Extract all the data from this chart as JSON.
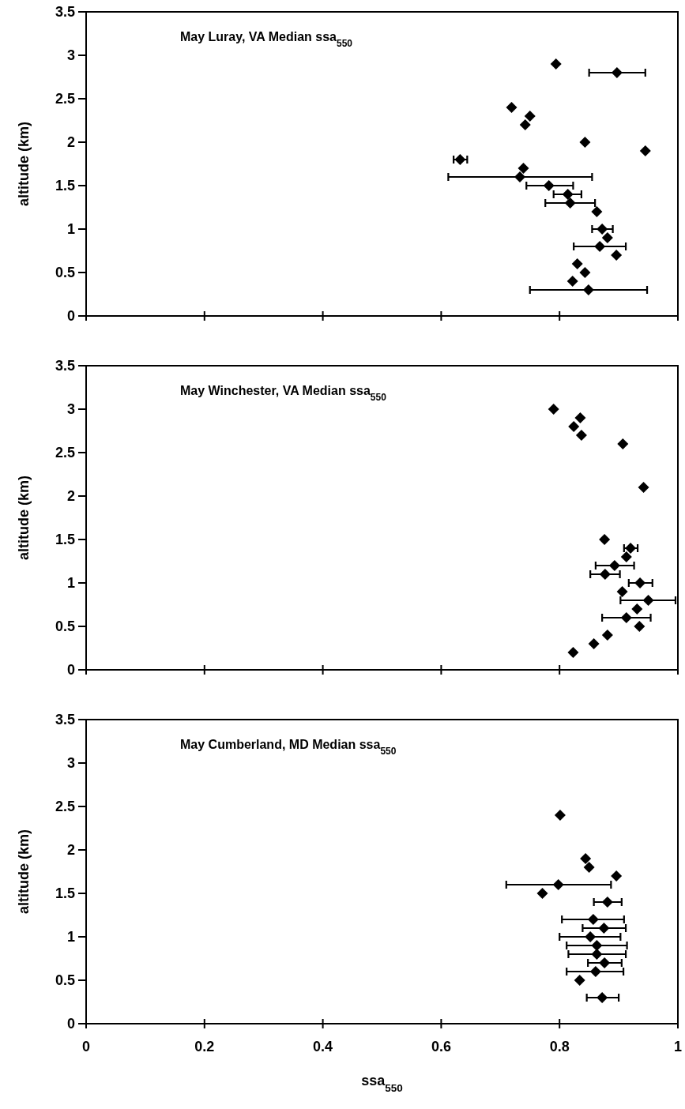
{
  "chart_data": [
    {
      "type": "scatter",
      "title": "May Luray, VA Median ssa$_{550}$",
      "ylabel": "altitude (km)",
      "xlim": [
        0,
        1
      ],
      "xticks": [
        0,
        0.2,
        0.4,
        0.6,
        0.8,
        1
      ],
      "ylim": [
        0,
        3.5
      ],
      "yticks": [
        0,
        0.5,
        1,
        1.5,
        2,
        2.5,
        3,
        3.5
      ],
      "tick_labels": "y",
      "marker": "diamond",
      "grid": false,
      "series": [
        {
          "color": "#000000",
          "x": [
            0.794,
            0.897,
            0.719,
            0.75,
            0.742,
            0.843,
            0.945,
            0.632,
            0.739,
            0.733,
            0.782,
            0.814,
            0.818,
            0.863,
            0.872,
            0.881,
            0.868,
            0.896,
            0.83,
            0.843,
            0.822,
            0.849
          ],
          "values": [
            2.9,
            2.8,
            2.4,
            2.3,
            2.2,
            2.0,
            1.9,
            1.8,
            1.7,
            1.6,
            1.5,
            1.4,
            1.3,
            1.2,
            1.0,
            0.9,
            0.8,
            0.7,
            0.6,
            0.5,
            0.4,
            0.3
          ],
          "xerrors": [
            null,
            [
              0.85,
              0.945
            ],
            null,
            null,
            null,
            null,
            null,
            [
              0.621,
              0.644
            ],
            null,
            [
              0.612,
              0.855
            ],
            [
              0.744,
              0.823
            ],
            [
              0.79,
              0.837
            ],
            [
              0.776,
              0.86
            ],
            null,
            [
              0.855,
              0.89
            ],
            null,
            [
              0.824,
              0.912
            ],
            null,
            null,
            null,
            null,
            [
              0.75,
              0.948
            ]
          ]
        }
      ]
    },
    {
      "type": "scatter",
      "title": "May Winchester, VA Median ssa$_{550}$",
      "ylabel": "altitude (km)",
      "xlim": [
        0,
        1
      ],
      "xticks": [
        0,
        0.2,
        0.4,
        0.6,
        0.8,
        1
      ],
      "ylim": [
        0,
        3.5
      ],
      "yticks": [
        0,
        0.5,
        1,
        1.5,
        2,
        2.5,
        3,
        3.5
      ],
      "tick_labels": "y",
      "marker": "diamond",
      "grid": false,
      "series": [
        {
          "color": "#000000",
          "x": [
            0.79,
            0.835,
            0.824,
            0.837,
            0.907,
            0.942,
            0.876,
            0.92,
            0.913,
            0.893,
            0.877,
            0.936,
            0.906,
            0.95,
            0.931,
            0.913,
            0.935,
            0.881,
            0.858,
            0.823
          ],
          "values": [
            3.0,
            2.9,
            2.8,
            2.7,
            2.6,
            2.1,
            1.5,
            1.4,
            1.3,
            1.2,
            1.1,
            1.0,
            0.9,
            0.8,
            0.7,
            0.6,
            0.5,
            0.4,
            0.3,
            0.2
          ],
          "xerrors": [
            null,
            null,
            null,
            null,
            null,
            null,
            null,
            [
              0.909,
              0.932
            ],
            null,
            [
              0.861,
              0.926
            ],
            [
              0.852,
              0.902
            ],
            [
              0.917,
              0.957
            ],
            null,
            [
              0.903,
              0.996
            ],
            null,
            [
              0.872,
              0.954
            ],
            null,
            null,
            null,
            null
          ]
        }
      ]
    },
    {
      "type": "scatter",
      "title": "May Cumberland, MD Median ssa$_{550}$",
      "xlabel": "ssa$_{550}$",
      "ylabel": "altitude (km)",
      "xlim": [
        0,
        1
      ],
      "xticks": [
        0,
        0.2,
        0.4,
        0.6,
        0.8,
        1
      ],
      "ylim": [
        0,
        3.5
      ],
      "yticks": [
        0,
        0.5,
        1,
        1.5,
        2,
        2.5,
        3,
        3.5
      ],
      "marker": "diamond",
      "grid": false,
      "series": [
        {
          "color": "#000000",
          "x": [
            0.801,
            0.844,
            0.85,
            0.896,
            0.798,
            0.771,
            0.881,
            0.857,
            0.875,
            0.852,
            0.863,
            0.863,
            0.876,
            0.861,
            0.834,
            0.872
          ],
          "values": [
            2.4,
            1.9,
            1.8,
            1.7,
            1.6,
            1.5,
            1.4,
            1.2,
            1.1,
            1.0,
            0.9,
            0.8,
            0.7,
            0.6,
            0.5,
            0.3
          ],
          "xerrors": [
            null,
            null,
            null,
            null,
            [
              0.71,
              0.887
            ],
            null,
            [
              0.858,
              0.905
            ],
            [
              0.804,
              0.909
            ],
            [
              0.839,
              0.912
            ],
            [
              0.8,
              0.903
            ],
            [
              0.812,
              0.914
            ],
            [
              0.815,
              0.912
            ],
            [
              0.848,
              0.905
            ],
            [
              0.812,
              0.908
            ],
            null,
            [
              0.846,
              0.9
            ]
          ]
        }
      ]
    }
  ]
}
